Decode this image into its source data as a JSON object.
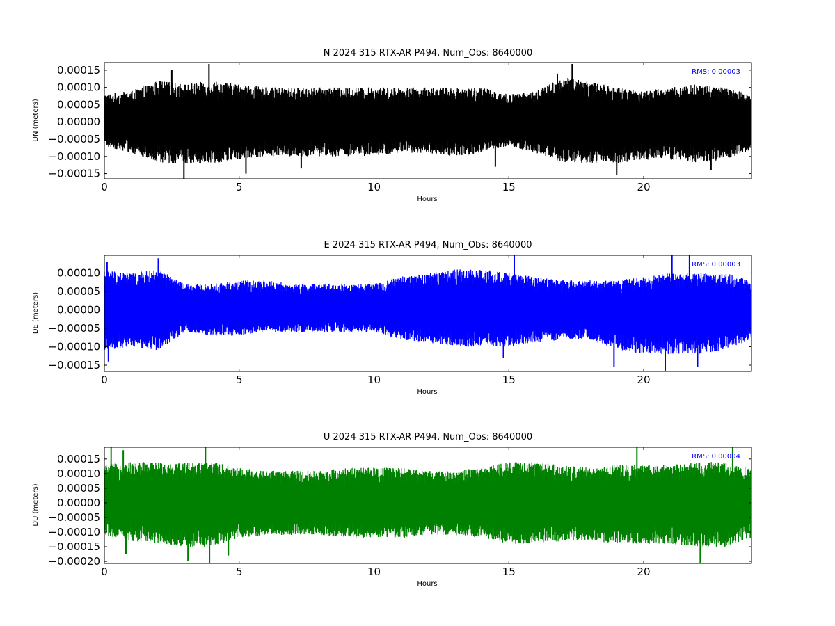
{
  "chart_data": [
    {
      "type": "line",
      "title": "N 2024 315 RTX-AR  P494, Num_Obs: 8640000",
      "xlabel": "Hours",
      "ylabel": "DN (meters)",
      "xlim": [
        0,
        24
      ],
      "ylim": [
        -0.000165,
        0.000172
      ],
      "xticks": [
        0,
        5,
        10,
        15,
        20
      ],
      "xtick_labels": [
        "0",
        "5",
        "10",
        "15",
        "20"
      ],
      "yticks": [
        -0.00015,
        -0.0001,
        -5e-05,
        0,
        5e-05,
        0.0001,
        0.00015
      ],
      "ytick_labels": [
        "−0.00015",
        "−0.00010",
        "−0.00005",
        "0.00000",
        "0.00005",
        "0.00010",
        "0.00015"
      ],
      "rms_label": "RMS:  0.00003",
      "rms_color": "#0000ff",
      "grid": false,
      "series": [
        {
          "color": "#000000",
          "x": [
            0,
            1,
            2,
            3,
            4,
            5,
            6,
            7,
            8,
            9,
            10,
            11,
            12,
            13,
            14,
            15,
            16,
            17,
            18,
            19,
            20,
            21,
            22,
            23,
            24
          ],
          "max": [
            8e-05,
            9e-05,
            0.00012,
            0.00011,
            0.00012,
            0.00011,
            0.0001,
            0.0001,
            0.0001,
            0.0001,
            0.0001,
            0.0001,
            0.0001,
            0.0001,
            0.0001,
            8e-05,
            9e-05,
            0.00013,
            0.00012,
            0.0001,
            9e-05,
            0.0001,
            0.00011,
            0.0001,
            8e-05
          ],
          "min": [
            -7e-05,
            -9e-05,
            -0.00012,
            -0.00012,
            -0.00012,
            -0.00011,
            -0.0001,
            -0.0001,
            -0.0001,
            -0.0001,
            -0.0001,
            -9e-05,
            -9e-05,
            -0.0001,
            -9e-05,
            -7e-05,
            -9e-05,
            -0.00012,
            -0.00012,
            -0.00012,
            -0.00011,
            -0.00011,
            -0.00012,
            -0.00011,
            -8e-05
          ],
          "spikes": [
            [
              3.88,
              0.000168
            ],
            [
              17.35,
              0.000168
            ],
            [
              2.95,
              -0.000165
            ],
            [
              19.0,
              -0.000155
            ],
            [
              5.25,
              -0.00015
            ],
            [
              2.5,
              0.00015
            ],
            [
              16.8,
              0.00014
            ],
            [
              22.5,
              -0.00014
            ],
            [
              14.5,
              -0.00013
            ],
            [
              7.3,
              -0.000135
            ]
          ]
        }
      ]
    },
    {
      "type": "line",
      "title": "E 2024 315 RTX-AR  P494, Num_Obs: 8640000",
      "xlabel": "Hours",
      "ylabel": "DE (meters)",
      "xlim": [
        0,
        24
      ],
      "ylim": [
        -0.000167,
        0.000148
      ],
      "xticks": [
        0,
        5,
        10,
        15,
        20
      ],
      "xtick_labels": [
        "0",
        "5",
        "10",
        "15",
        "20"
      ],
      "yticks": [
        -0.00015,
        -0.0001,
        -5e-05,
        0,
        5e-05,
        0.0001
      ],
      "ytick_labels": [
        "−0.00015",
        "−0.00010",
        "−0.00005",
        "0.00000",
        "0.00005",
        "0.00010"
      ],
      "rms_label": "RMS:  0.00003",
      "rms_color": "#0000ff",
      "grid": false,
      "series": [
        {
          "color": "#0000ff",
          "x": [
            0,
            1,
            2,
            3,
            4,
            5,
            6,
            7,
            8,
            9,
            10,
            11,
            12,
            13,
            14,
            15,
            16,
            17,
            18,
            19,
            20,
            21,
            22,
            23,
            24
          ],
          "max": [
            0.00011,
            0.0001,
            0.00011,
            7e-05,
            7e-05,
            8e-05,
            8e-05,
            7e-05,
            7e-05,
            7e-05,
            7e-05,
            9e-05,
            0.0001,
            0.00011,
            0.00011,
            0.0001,
            9e-05,
            8e-05,
            8e-05,
            8e-05,
            9e-05,
            0.0001,
            0.0001,
            0.0001,
            8e-05
          ],
          "min": [
            -0.00011,
            -0.0001,
            -0.00011,
            -6e-05,
            -7e-05,
            -7e-05,
            -6e-05,
            -6e-05,
            -6e-05,
            -6e-05,
            -6e-05,
            -8e-05,
            -9e-05,
            -0.0001,
            -0.0001,
            -0.0001,
            -9e-05,
            -8e-05,
            -8e-05,
            -0.00011,
            -0.00012,
            -0.00012,
            -0.00012,
            -0.00011,
            -8e-05
          ],
          "spikes": [
            [
              15.2,
              0.000148
            ],
            [
              21.05,
              0.000148
            ],
            [
              21.7,
              0.000148
            ],
            [
              0.1,
              0.00013
            ],
            [
              2.0,
              0.00014
            ],
            [
              20.8,
              -0.000165
            ],
            [
              0.15,
              -0.00014
            ],
            [
              14.8,
              -0.00013
            ],
            [
              18.9,
              -0.000155
            ],
            [
              22.0,
              -0.000155
            ]
          ]
        }
      ]
    },
    {
      "type": "line",
      "title": "U 2024 315 RTX-AR  P494, Num_Obs: 8640000",
      "xlabel": "Hours",
      "ylabel": "DU (meters)",
      "xlim": [
        0,
        24
      ],
      "ylim": [
        -0.000207,
        0.00019
      ],
      "xticks": [
        0,
        5,
        10,
        15,
        20
      ],
      "xtick_labels": [
        "0",
        "5",
        "10",
        "15",
        "20"
      ],
      "yticks": [
        -0.0002,
        -0.00015,
        -0.0001,
        -5e-05,
        0,
        5e-05,
        0.0001,
        0.00015
      ],
      "ytick_labels": [
        "−0.00020",
        "−0.00015",
        "−0.00010",
        "−0.00005",
        "0.00000",
        "0.00005",
        "0.00010",
        "0.00015"
      ],
      "rms_label": "RMS:  0.00004",
      "rms_color": "#0000ff",
      "grid": false,
      "series": [
        {
          "color": "#008000",
          "x": [
            0,
            1,
            2,
            3,
            4,
            5,
            6,
            7,
            8,
            9,
            10,
            11,
            12,
            13,
            14,
            15,
            16,
            17,
            18,
            19,
            20,
            21,
            22,
            23,
            24
          ],
          "max": [
            0.00013,
            0.00014,
            0.00014,
            0.00014,
            0.00014,
            0.00012,
            0.00011,
            0.00011,
            0.00011,
            0.00012,
            0.00012,
            0.00012,
            0.00011,
            0.00011,
            0.00012,
            0.00014,
            0.00014,
            0.00013,
            0.00012,
            0.00013,
            0.00013,
            0.00013,
            0.00014,
            0.00014,
            0.00012
          ],
          "min": [
            -0.00011,
            -0.00013,
            -0.00014,
            -0.00015,
            -0.00015,
            -0.00012,
            -0.00011,
            -0.00011,
            -0.00011,
            -0.00012,
            -0.00012,
            -0.00012,
            -0.00011,
            -0.00011,
            -0.00012,
            -0.00014,
            -0.00014,
            -0.00013,
            -0.00013,
            -0.00014,
            -0.00014,
            -0.00014,
            -0.00015,
            -0.00015,
            -0.00012
          ],
          "spikes": [
            [
              0.25,
              0.00019
            ],
            [
              0.7,
              0.00018
            ],
            [
              3.75,
              0.00019
            ],
            [
              19.75,
              0.00019
            ],
            [
              23.3,
              0.00019
            ],
            [
              3.1,
              -0.000198
            ],
            [
              3.9,
              -0.000205
            ],
            [
              22.1,
              -0.000205
            ],
            [
              4.6,
              -0.00018
            ],
            [
              0.8,
              -0.000175
            ]
          ]
        }
      ]
    }
  ]
}
